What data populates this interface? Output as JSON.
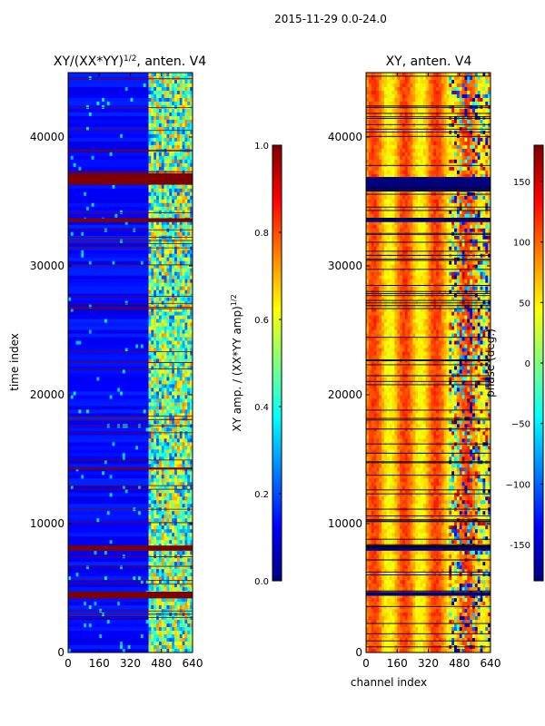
{
  "figure_title": "2015-11-29 0.0-24.0",
  "colors": {
    "jet": [
      "#00007f",
      "#0000ff",
      "#007fff",
      "#00ffff",
      "#7fff7f",
      "#ffff00",
      "#ff7f00",
      "#ff0000",
      "#7f0000"
    ],
    "flag_band": "#7f0000",
    "phase_band": "#00007f",
    "phase_line": "#000000"
  },
  "chart_data": [
    {
      "type": "heatmap",
      "title": "XY/(XX*YY)^(1/2), anten. V4",
      "title_main": "XY/(XX*YY)",
      "title_sup": "1/2",
      "title_rest": ", anten. V4",
      "xlabel": "",
      "ylabel": "time index",
      "xlim": [
        0,
        640
      ],
      "ylim": [
        0,
        45000
      ],
      "xticks": [
        0,
        160,
        320,
        480,
        640
      ],
      "yticks": [
        0,
        10000,
        20000,
        30000,
        40000
      ],
      "xtick_labels": [
        "0",
        "160",
        "320",
        "480",
        "640"
      ],
      "ytick_labels": [
        "0",
        "10000",
        "20000",
        "30000",
        "40000"
      ],
      "flagged_bands": [
        {
          "start": 36300,
          "end": 37200
        },
        {
          "start": 33400,
          "end": 33700
        },
        {
          "start": 14200,
          "end": 14350
        },
        {
          "start": 7900,
          "end": 8300
        },
        {
          "start": 4200,
          "end": 4700
        }
      ],
      "active_channel_range": [
        420,
        640
      ],
      "colorbar": {
        "label_main": "XY amp. / (XX*YY amp)",
        "label_sup": "1/2",
        "range": [
          0.0,
          1.0
        ],
        "ticks": [
          0.0,
          0.2,
          0.4,
          0.6,
          0.8,
          1.0
        ],
        "tick_labels": [
          "0.0",
          "0.2",
          "0.4",
          "0.6",
          "0.8",
          "1.0"
        ]
      }
    },
    {
      "type": "heatmap",
      "title": "XY, anten. V4",
      "xlabel": "channel index",
      "ylabel": "",
      "xlim": [
        0,
        640
      ],
      "ylim": [
        0,
        45000
      ],
      "xticks": [
        0,
        160,
        320,
        480,
        640
      ],
      "yticks": [
        0,
        10000,
        20000,
        30000,
        40000
      ],
      "xtick_labels": [
        "0",
        "160",
        "320",
        "480",
        "640"
      ],
      "ytick_labels": [
        "0",
        "10000",
        "20000",
        "30000",
        "40000"
      ],
      "flagged_bands": [
        {
          "start": 35800,
          "end": 36900
        },
        {
          "start": 33400,
          "end": 33700
        },
        {
          "start": 7900,
          "end": 8300
        },
        {
          "start": 4400,
          "end": 4700
        }
      ],
      "stripe_period_channels": 160,
      "colorbar": {
        "label": "phase (deg.)",
        "range": [
          -180,
          180
        ],
        "ticks": [
          -150,
          -100,
          -50,
          0,
          50,
          100,
          150
        ],
        "tick_labels": [
          "-150",
          "−100",
          "−50",
          "0",
          "50",
          "100",
          "150"
        ]
      }
    }
  ]
}
